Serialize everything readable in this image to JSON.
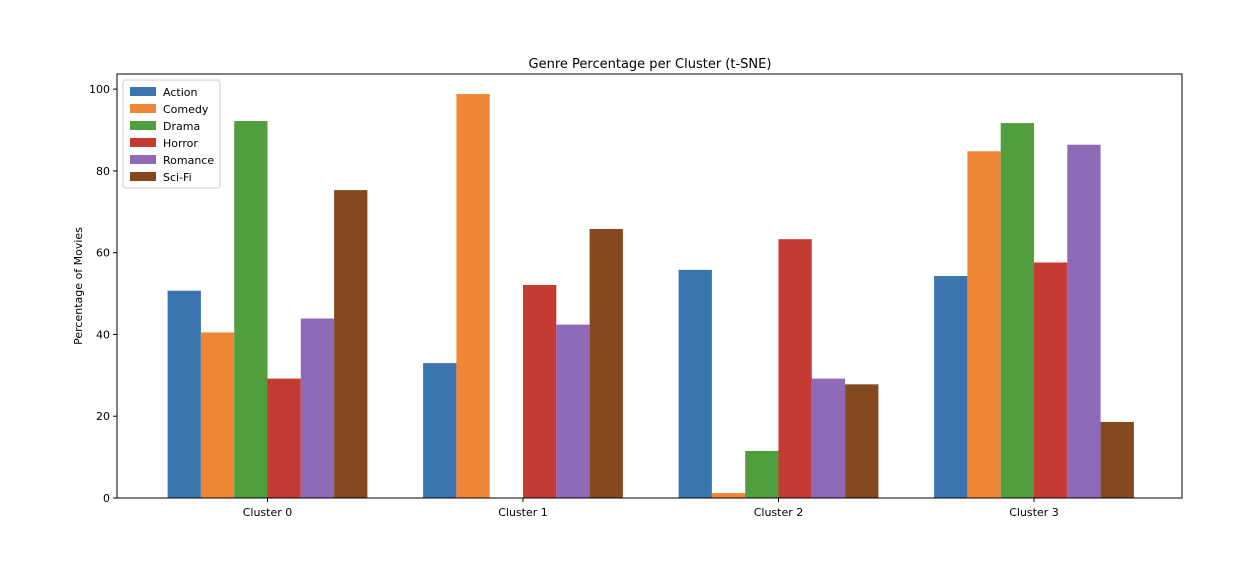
{
  "chart_data": {
    "type": "bar",
    "title": "Genre Percentage per Cluster (t-SNE)",
    "xlabel": "",
    "ylabel": "Percentage of Movies",
    "categories": [
      "Cluster 0",
      "Cluster 1",
      "Cluster 2",
      "Cluster 3"
    ],
    "series": [
      {
        "name": "Action",
        "color": "#3a75af",
        "values": [
          50.7,
          33.0,
          55.8,
          54.3
        ]
      },
      {
        "name": "Comedy",
        "color": "#ef8636",
        "values": [
          40.5,
          98.8,
          1.2,
          84.8
        ]
      },
      {
        "name": "Drama",
        "color": "#519e3e",
        "values": [
          92.2,
          0,
          11.5,
          91.7
        ]
      },
      {
        "name": "Horror",
        "color": "#c53a32",
        "values": [
          29.2,
          52.1,
          63.3,
          57.6
        ]
      },
      {
        "name": "Romance",
        "color": "#8d69b8",
        "values": [
          43.9,
          42.4,
          29.2,
          86.4
        ]
      },
      {
        "name": "Sci-Fi",
        "color": "#84491f",
        "values": [
          75.3,
          65.8,
          27.8,
          18.6
        ]
      }
    ],
    "ylim": [
      0,
      103.7
    ],
    "yticks": [
      0,
      20,
      40,
      60,
      80,
      100
    ],
    "grid": false,
    "legend": "top-left"
  }
}
